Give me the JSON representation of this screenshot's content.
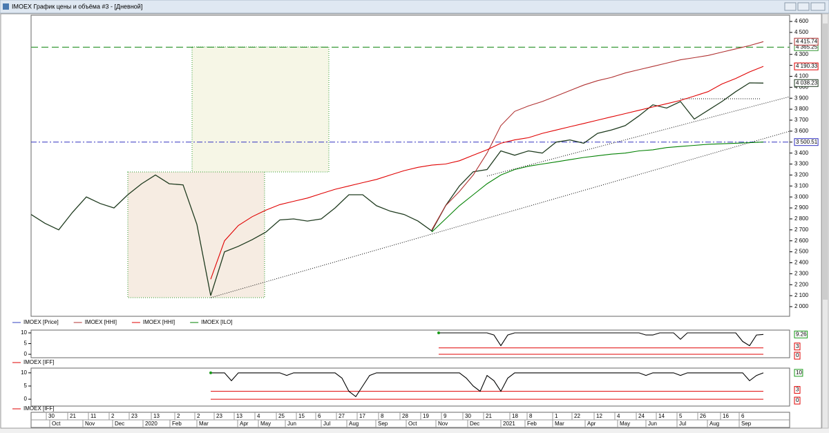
{
  "window": {
    "title": "IMOEX График цены и объёма #3 - [Дневной]"
  },
  "time_axis": {
    "days": [
      "30",
      "21",
      "11",
      "2",
      "23",
      "13",
      "2",
      "2",
      "23",
      "13",
      "4",
      "25",
      "15",
      "6",
      "27",
      "17",
      "8",
      "28",
      "19",
      "9",
      "30",
      "21",
      "18",
      "8",
      "1",
      "22",
      "12",
      "4",
      "24",
      "14",
      "5",
      "26",
      "16",
      "6"
    ],
    "months": [
      "Oct",
      "Nov",
      "Dec",
      "2020",
      "Feb",
      "Mar",
      "Apr",
      "May",
      "Jun",
      "Jul",
      "Aug",
      "Sep",
      "Oct",
      "Nov",
      "Dec",
      "2021",
      "Feb",
      "Mar",
      "Apr",
      "May",
      "Jun",
      "Jul",
      "Aug",
      "Sep"
    ]
  },
  "chart_data": [
    {
      "type": "line",
      "ylim": [
        1912,
        4657
      ],
      "yticks": [
        {
          "value": 2000,
          "label": "2 000"
        },
        {
          "value": 2100,
          "label": "2 100"
        },
        {
          "value": 2200,
          "label": "2 200"
        },
        {
          "value": 2300,
          "label": "2 300"
        },
        {
          "value": 2400,
          "label": "2 400"
        },
        {
          "value": 2500,
          "label": "2 500"
        },
        {
          "value": 2600,
          "label": "2 600"
        },
        {
          "value": 2700,
          "label": "2 700"
        },
        {
          "value": 2800,
          "label": "2 800"
        },
        {
          "value": 2900,
          "label": "2 900"
        },
        {
          "value": 3000,
          "label": "3 000"
        },
        {
          "value": 3100,
          "label": "3 100"
        },
        {
          "value": 3200,
          "label": "3 200"
        },
        {
          "value": 3300,
          "label": "3 300"
        },
        {
          "value": 3400,
          "label": "3 400"
        },
        {
          "value": 3500,
          "label": "3 500"
        },
        {
          "value": 3600,
          "label": "3 600"
        },
        {
          "value": 3700,
          "label": "3 700"
        },
        {
          "value": 3800,
          "label": "3 800"
        },
        {
          "value": 3900,
          "label": "3 900"
        },
        {
          "value": 4000,
          "label": "4 000"
        },
        {
          "value": 4100,
          "label": "4 100"
        },
        {
          "value": 4200,
          "label": "4 200"
        },
        {
          "value": 4300,
          "label": "4 300"
        },
        {
          "value": 4400,
          "label": "4 400"
        },
        {
          "value": 4500,
          "label": "4 500"
        },
        {
          "value": 4600,
          "label": "4 600"
        }
      ],
      "hlines": [
        {
          "value": 4365.25,
          "label": "4 365.25",
          "color": "#3a9a3a",
          "style": "dashed"
        },
        {
          "value": 3500.51,
          "label": "3 500.51",
          "color": "#3030c0",
          "style": "dashdot"
        }
      ],
      "series": [
        {
          "name": "IMOEX [Price]",
          "color": "#1e3a1e",
          "last_label": "4 038.23",
          "values": [
            2840,
            2760,
            2700,
            2860,
            3000,
            2940,
            2900,
            3020,
            3120,
            3200,
            3120,
            3110,
            2750,
            2100,
            2500,
            2550,
            2610,
            2680,
            2790,
            2800,
            2780,
            2800,
            2900,
            3020,
            3020,
            2920,
            2870,
            2840,
            2780,
            2690,
            2920,
            3100,
            3230,
            3250,
            3420,
            3380,
            3420,
            3400,
            3500,
            3520,
            3490,
            3580,
            3610,
            3650,
            3740,
            3840,
            3810,
            3870,
            3710,
            3790,
            3870,
            3960,
            4040,
            4038.23
          ]
        },
        {
          "name": "IMOEX [HHI]",
          "color": "#b03030",
          "last_label": "4 415.74",
          "values": [
            null,
            null,
            null,
            null,
            null,
            null,
            null,
            null,
            null,
            null,
            null,
            null,
            null,
            null,
            null,
            null,
            null,
            null,
            null,
            null,
            null,
            null,
            null,
            null,
            null,
            null,
            null,
            null,
            null,
            2700,
            2920,
            3050,
            3200,
            3400,
            3650,
            3780,
            3830,
            3870,
            3920,
            3970,
            4020,
            4060,
            4090,
            4130,
            4160,
            4190,
            4220,
            4250,
            4270,
            4290,
            4320,
            4350,
            4380,
            4415.74
          ]
        },
        {
          "name": "IMOEX [HHI]",
          "color": "#e00000",
          "last_label": "4 190.33",
          "values": [
            null,
            null,
            null,
            null,
            null,
            null,
            null,
            null,
            null,
            null,
            null,
            null,
            null,
            2250,
            2600,
            2740,
            2820,
            2880,
            2930,
            2960,
            2990,
            3030,
            3070,
            3100,
            3130,
            3160,
            3200,
            3240,
            3270,
            3290,
            3300,
            3330,
            3380,
            3430,
            3490,
            3520,
            3540,
            3580,
            3610,
            3640,
            3670,
            3700,
            3730,
            3760,
            3790,
            3820,
            3850,
            3880,
            3920,
            3960,
            4030,
            4080,
            4140,
            4190.33
          ]
        },
        {
          "name": "IMOEX [ILO]",
          "color": "#008000",
          "values": [
            null,
            null,
            null,
            null,
            null,
            null,
            null,
            null,
            null,
            null,
            null,
            null,
            null,
            null,
            null,
            null,
            null,
            null,
            null,
            null,
            null,
            null,
            null,
            null,
            null,
            null,
            null,
            null,
            null,
            2680,
            2800,
            2920,
            3020,
            3120,
            3200,
            3250,
            3280,
            3300,
            3320,
            3340,
            3360,
            3375,
            3390,
            3400,
            3420,
            3430,
            3450,
            3460,
            3470,
            3480,
            3485,
            3490,
            3495,
            3500.51
          ]
        }
      ]
    },
    {
      "type": "line",
      "ylim": [
        -1.6,
        11.3
      ],
      "yticks": [
        0,
        5,
        10
      ],
      "levels": [
        3,
        0
      ],
      "level_color": "#e00000",
      "series": [
        {
          "name": "IMOEX [IFF]",
          "color": "#000000",
          "values": [
            null,
            null,
            null,
            null,
            null,
            null,
            null,
            null,
            null,
            null,
            null,
            null,
            null,
            null,
            null,
            null,
            null,
            null,
            null,
            null,
            null,
            null,
            null,
            null,
            null,
            null,
            null,
            null,
            null,
            null,
            null,
            null,
            null,
            null,
            null,
            null,
            null,
            null,
            null,
            null,
            null,
            null,
            null,
            null,
            null,
            null,
            null,
            null,
            null,
            null,
            null,
            null,
            null,
            null,
            null,
            null,
            null,
            null,
            null,
            10,
            10,
            10,
            10,
            10,
            10,
            10,
            10,
            9,
            4,
            9,
            10,
            10,
            10,
            10,
            10,
            10,
            10,
            10,
            10,
            10,
            10,
            10,
            10,
            10,
            10,
            10,
            10,
            10,
            10,
            9,
            9,
            10,
            10,
            10,
            7,
            10,
            10,
            10,
            10,
            10,
            10,
            10,
            10,
            6,
            4,
            9,
            9.26
          ]
        }
      ]
    },
    {
      "type": "line",
      "ylim": [
        -2.6,
        11.8
      ],
      "yticks": [
        0,
        5,
        10
      ],
      "levels": [
        3,
        0
      ],
      "level_color": "#e00000",
      "series": [
        {
          "name": "IMOEX [IFF]",
          "color": "#000000",
          "values": [
            null,
            null,
            null,
            null,
            null,
            null,
            null,
            null,
            null,
            null,
            null,
            null,
            null,
            null,
            null,
            null,
            null,
            null,
            null,
            null,
            null,
            null,
            null,
            null,
            null,
            null,
            10,
            10,
            10,
            7,
            10,
            10,
            10,
            10,
            10,
            10,
            10,
            9,
            10,
            10,
            10,
            10,
            10,
            10,
            10,
            8,
            3,
            1,
            5,
            9,
            10,
            10,
            10,
            10,
            10,
            10,
            10,
            10,
            10,
            10,
            10,
            10,
            10,
            8,
            5,
            3,
            9,
            7,
            3,
            8,
            10,
            10,
            10,
            10,
            10,
            10,
            10,
            10,
            10,
            10,
            10,
            10,
            10,
            10,
            10,
            10,
            10,
            10,
            10,
            9,
            10,
            10,
            10,
            10,
            9,
            10,
            10,
            10,
            10,
            10,
            10,
            10,
            10,
            10,
            7,
            9,
            10
          ]
        }
      ]
    }
  ]
}
